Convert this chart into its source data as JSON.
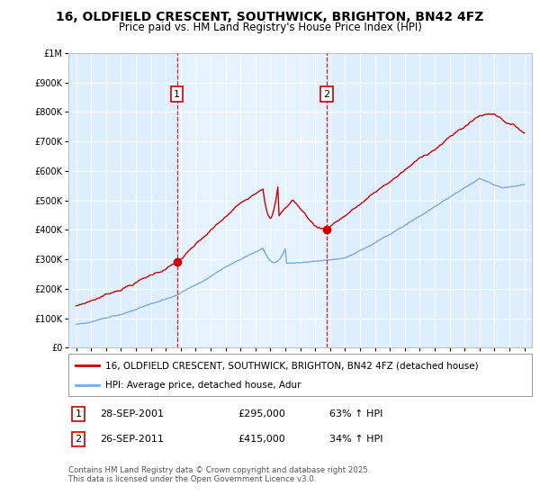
{
  "title": "16, OLDFIELD CRESCENT, SOUTHWICK, BRIGHTON, BN42 4FZ",
  "subtitle": "Price paid vs. HM Land Registry's House Price Index (HPI)",
  "legend_line1": "16, OLDFIELD CRESCENT, SOUTHWICK, BRIGHTON, BN42 4FZ (detached house)",
  "legend_line2": "HPI: Average price, detached house, Adur",
  "sale1_label": "1",
  "sale1_date": "28-SEP-2001",
  "sale1_price": "£295,000",
  "sale1_hpi": "63% ↑ HPI",
  "sale2_label": "2",
  "sale2_date": "26-SEP-2011",
  "sale2_price": "£415,000",
  "sale2_hpi": "34% ↑ HPI",
  "footnote": "Contains HM Land Registry data © Crown copyright and database right 2025.\nThis data is licensed under the Open Government Licence v3.0.",
  "sale1_color": "#cc0000",
  "sale2_color": "#cc0000",
  "hpi_color": "#7aaadd",
  "price_color": "#cc0000",
  "background_color": "#ddeeff",
  "highlight_color": "#e8f0f8",
  "ylim": [
    0,
    1000000
  ],
  "yticks": [
    0,
    100000,
    200000,
    300000,
    400000,
    500000,
    600000,
    700000,
    800000,
    900000,
    1000000
  ],
  "sale1_x": 2001.75,
  "sale2_x": 2011.75,
  "sale1_price_val": 295000,
  "sale2_price_val": 415000,
  "xmin": 1994.5,
  "xmax": 2025.5
}
